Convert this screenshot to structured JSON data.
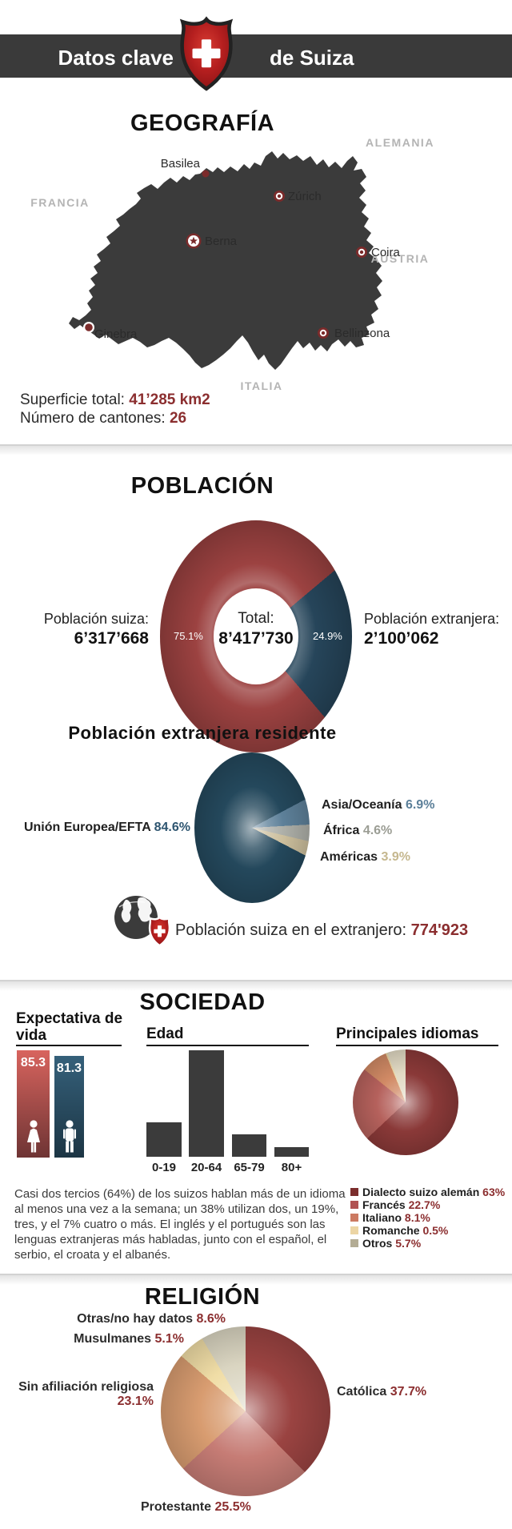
{
  "header": {
    "title_left": "Datos clave",
    "title_right": "de Suiza",
    "logo": "swiss-shield"
  },
  "colors": {
    "charcoal": "#3b3b3b",
    "band": "#3a3a3a",
    "accent_dark_red": "#8b2e2f",
    "marker_red": "#7b2b2b",
    "shield_red": "#b51f1f",
    "country_gray": "#b4b4b4"
  },
  "sections": {
    "geografia": {
      "title": "GEOGRAFÍA",
      "countries": [
        {
          "name": "ALEMANIA"
        },
        {
          "name": "FRANCIA"
        },
        {
          "name": "AUSTRIA"
        },
        {
          "name": "ITALIA"
        }
      ],
      "cities": [
        {
          "name": "Basilea",
          "marker": "dot"
        },
        {
          "name": "Zúrich",
          "marker": "ring-dot"
        },
        {
          "name": "Berna",
          "marker": "capital-star"
        },
        {
          "name": "Coira",
          "marker": "ring-dot"
        },
        {
          "name": "Ginebra",
          "marker": "white-ring-dot"
        },
        {
          "name": "Bellinzona",
          "marker": "ring-dot"
        }
      ],
      "stats": [
        {
          "label": "Superficie total: ",
          "value": "41’285 km2"
        },
        {
          "label": "Número de cantones: ",
          "value": "26"
        }
      ]
    },
    "poblacion": {
      "title": "POBLACIÓN",
      "left_label": "Población suiza:",
      "center_label": "Total:",
      "right_label": "Población extranjera:"
    },
    "extranjera": {
      "title": "Población extranjera residente"
    },
    "extranjero_total": {
      "icon": "globe-swiss-shield",
      "label": "Población suiza en el extranjero: ",
      "value": "774'923"
    },
    "sociedad": {
      "title": "SOCIEDAD",
      "life_heading": "Expectativa de vida",
      "edad_heading": "Edad",
      "idiomas_heading": "Principales idiomas",
      "text": "Casi dos tercios (64%) de los suizos hablan más de un idioma al menos una vez a la semana; un 38% utilizan dos, un 19%, tres, y el 7% cuatro o más. El inglés y el portugués son las lenguas extranjeras más habladas, junto con el español, el serbio, el croata y el albanés."
    },
    "religion": {
      "title": "RELIGIÓN"
    }
  },
  "chart_data": [
    {
      "id": "poblacion_donut",
      "type": "pie",
      "shape": "donut",
      "start_deg": 50,
      "title": "POBLACIÓN",
      "center_label": "Total:",
      "center_value": "8’417’730",
      "slices": [
        {
          "label": "Población extranjera",
          "value_pct": 24.9,
          "value_text": "24.9%",
          "abs": "2’100’062",
          "color": "#26455a"
        },
        {
          "label": "Población suiza",
          "value_pct": 75.1,
          "value_text": "75.1%",
          "abs": "6’317’668",
          "color": "#9c4241"
        }
      ]
    },
    {
      "id": "extranjera_pie",
      "type": "pie",
      "start_deg": 62,
      "title": "Población extranjera residente",
      "slices": [
        {
          "label": "Asia/Oceanía",
          "value_pct": 6.9,
          "value_text": "6.9%",
          "color": "#5d8099",
          "value_color": "#5b7f99"
        },
        {
          "label": "África",
          "value_pct": 4.6,
          "value_text": "4.6%",
          "color": "#adafa8",
          "value_color": "#9b9d94"
        },
        {
          "label": "Américas",
          "value_pct": 3.9,
          "value_text": "3.9%",
          "color": "#ccbf9d",
          "value_color": "#c5b78e"
        },
        {
          "label": "Unión Europea/EFTA",
          "value_pct": 84.6,
          "value_text": "84.6%",
          "color": "#24485c",
          "value_color": "#2e5570"
        }
      ]
    },
    {
      "id": "edad_bars",
      "type": "bar",
      "title": "Edad",
      "categories": [
        "0-19",
        "20-64",
        "65-79",
        "80+"
      ],
      "values": [
        20,
        61.5,
        13,
        5.5
      ],
      "ylabel": "",
      "xlabel": "",
      "note_unlabeled_bars": true
    },
    {
      "id": "idiomas_pie",
      "type": "pie",
      "start_deg": 0,
      "title": "Principales idiomas",
      "legend_position": "below-right",
      "slices": [
        {
          "label": "Dialecto suizo alemán",
          "value_pct": 63,
          "value_text": "63%",
          "color": "#8a3938",
          "legend_color": "#7b2d2c"
        },
        {
          "label": "Francés",
          "value_pct": 22.7,
          "value_text": "22.7%",
          "color": "#b5615c",
          "legend_color": "#b05252"
        },
        {
          "label": "Italiano",
          "value_pct": 8.1,
          "value_text": "8.1%",
          "color": "#d18a65",
          "legend_color": "#cc7a62"
        },
        {
          "label": "Romanche",
          "value_pct": 0.5,
          "value_text": "0.5%",
          "color": "#eed9a6",
          "legend_color": "#ecd5a4"
        },
        {
          "label": "Otros",
          "value_pct": 5.7,
          "value_text": "5.7%",
          "color": "#e2dac4",
          "legend_color": "#b3ac94"
        }
      ]
    },
    {
      "id": "religion_pie",
      "type": "pie",
      "start_deg": 0,
      "title": "RELIGIÓN",
      "slices": [
        {
          "label": "Católica",
          "value_pct": 37.7,
          "value_text": "37.7%",
          "color": "#9a4341"
        },
        {
          "label": "Protestante",
          "value_pct": 25.5,
          "value_text": "25.5%",
          "color": "#c67c75"
        },
        {
          "label": "Sin afiliación religiosa",
          "value_pct": 23.1,
          "value_text": "23.1%",
          "color": "#d89c70"
        },
        {
          "label": "Musulmanes",
          "value_pct": 5.1,
          "value_text": "5.1%",
          "color": "#f0dda6"
        },
        {
          "label": "Otras/no hay datos",
          "value_pct": 8.6,
          "value_text": "8.6%",
          "color": "#dad5c1"
        }
      ]
    },
    {
      "id": "expectativa_vida",
      "type": "bar",
      "title": "Expectativa de vida",
      "categories": [
        "mujer",
        "hombre"
      ],
      "values": [
        85.3,
        81.3
      ],
      "colors": [
        "#c05550",
        "#2b4f66"
      ]
    }
  ]
}
